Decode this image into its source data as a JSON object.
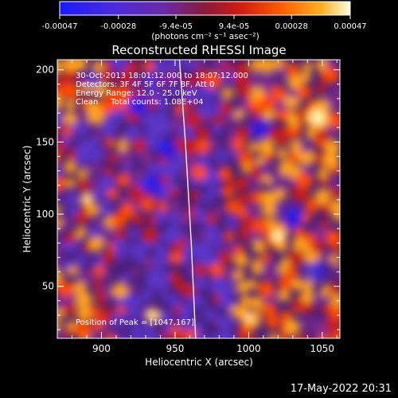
{
  "colorbar": {
    "tick_labels": [
      "-0.00047",
      "-0.00028",
      "-9.4e-05",
      "9.4e-05",
      "0.00028",
      "0.00047"
    ],
    "tick_values": [
      -0.00047,
      -0.00028,
      -9.4e-05,
      9.4e-05,
      0.00028,
      0.00047
    ],
    "range": [
      -0.00047,
      0.00047
    ],
    "unit_label": "(photons cm⁻² s⁻¹ asec⁻²)"
  },
  "chart_data": {
    "type": "heatmap",
    "title": "Reconstructed RHESSI Image",
    "xlabel": "Heliocentric X (arcsec)",
    "ylabel": "Heliocentric Y (arcsec)",
    "xlim": [
      870,
      1062
    ],
    "ylim": [
      14,
      207
    ],
    "xticks": [
      900,
      950,
      1000,
      1050
    ],
    "yticks": [
      50,
      100,
      150,
      200
    ],
    "annotations": [
      "30-Oct-2013 18:01:12.000 to 18:07:12.000",
      "Detectors: 3F 4F 5F 6F 7F 8F, Att 0",
      "Energy Range: 12.0 - 25.0 keV",
      "Clean     Total counts: 1.08E+04"
    ],
    "peak_label": "Position of Peak = [1047,167]",
    "peak": [
      1047,
      167
    ],
    "limb_x": [
      953,
      957,
      961,
      964
    ],
    "limb_y": [
      207,
      150,
      80,
      14
    ],
    "grid": false,
    "colorscale": [
      "#1a1aff",
      "#5a36c8",
      "#7a2a8a",
      "#c41a1a",
      "#ff4a00",
      "#ffa21a",
      "#fff6b0"
    ]
  },
  "footer": {
    "timestamp": "17-May-2022 20:31"
  }
}
